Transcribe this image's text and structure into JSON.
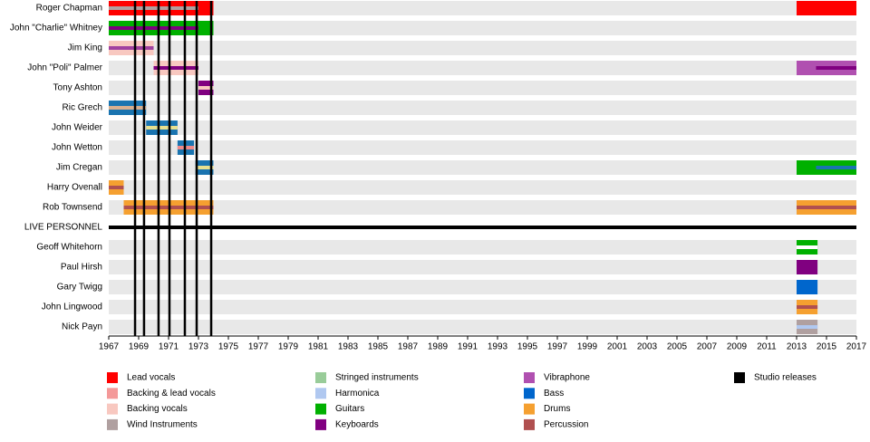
{
  "chart_data": {
    "type": "timeline",
    "xlim": [
      1967,
      2017
    ],
    "xticks": [
      1967,
      1969,
      1971,
      1973,
      1975,
      1977,
      1979,
      1981,
      1983,
      1985,
      1987,
      1989,
      1991,
      1993,
      1995,
      1997,
      1999,
      2001,
      2003,
      2005,
      2007,
      2009,
      2011,
      2013,
      2015,
      2017
    ],
    "members": [
      {
        "name": "Roger Chapman",
        "bars": [
          {
            "start": 1967,
            "end": 1974,
            "color": "#ff0000"
          },
          {
            "start": 2013,
            "end": 2017,
            "color": "#ff0000"
          }
        ],
        "stripes": [
          {
            "start": 1967,
            "end": 1973,
            "color": "#b0a0a0"
          }
        ]
      },
      {
        "name": "John \"Charlie\" Whitney",
        "bars": [
          {
            "start": 1967,
            "end": 1974,
            "color": "#00b000"
          }
        ],
        "stripes": [
          {
            "start": 1967,
            "end": 1973,
            "color": "#800080"
          }
        ]
      },
      {
        "name": "Jim King",
        "bars": [
          {
            "start": 1967,
            "end": 1970,
            "color": "#f8c8c0"
          }
        ],
        "stripes": [
          {
            "start": 1967,
            "end": 1970,
            "color": "#a040a0"
          }
        ]
      },
      {
        "name": "John \"Poli\" Palmer",
        "bars": [
          {
            "start": 1970,
            "end": 1973,
            "color": "#f8c8c0"
          },
          {
            "start": 2013,
            "end": 2017,
            "color": "#b050b0"
          }
        ],
        "stripes": [
          {
            "start": 1970,
            "end": 1973,
            "color": "#800080"
          },
          {
            "start": 2014.3,
            "end": 2017,
            "color": "#800080"
          }
        ]
      },
      {
        "name": "Tony Ashton",
        "bars": [
          {
            "start": 1973,
            "end": 1974,
            "color": "#800080"
          }
        ],
        "stripes": [
          {
            "start": 1973,
            "end": 1974,
            "color": "#f8c8c0"
          }
        ]
      },
      {
        "name": "Ric Grech",
        "bars": [
          {
            "start": 1967,
            "end": 1969.5,
            "color": "#1a74b0"
          }
        ],
        "stripes": [
          {
            "start": 1967,
            "end": 1969.5,
            "color": "#d8b090"
          }
        ]
      },
      {
        "name": "John Weider",
        "bars": [
          {
            "start": 1969.5,
            "end": 1971.6,
            "color": "#1a74b0"
          }
        ],
        "stripes": [
          {
            "start": 1969.5,
            "end": 1971.6,
            "color": "#e8e090"
          }
        ]
      },
      {
        "name": "John Wetton",
        "bars": [
          {
            "start": 1971.6,
            "end": 1972.7,
            "color": "#1a74b0"
          }
        ],
        "stripes": [
          {
            "start": 1971.6,
            "end": 1972.7,
            "color": "#f08a8a"
          }
        ]
      },
      {
        "name": "Jim Cregan",
        "bars": [
          {
            "start": 1972.8,
            "end": 1974,
            "color": "#1a74b0"
          },
          {
            "start": 2013,
            "end": 2017,
            "color": "#00b000"
          }
        ],
        "stripes": [
          {
            "start": 1972.8,
            "end": 1974,
            "color": "#e8e090"
          },
          {
            "start": 2014.3,
            "end": 2017,
            "color": "#1a74b0"
          }
        ]
      },
      {
        "name": "Harry Ovenall",
        "bars": [
          {
            "start": 1967,
            "end": 1968,
            "color": "#f5a030"
          }
        ],
        "stripes": [
          {
            "start": 1967,
            "end": 1968,
            "color": "#b05050"
          }
        ]
      },
      {
        "name": "Rob Townsend",
        "bars": [
          {
            "start": 1968,
            "end": 1974,
            "color": "#f5a030"
          },
          {
            "start": 2013,
            "end": 2017,
            "color": "#f5a030"
          }
        ],
        "stripes": [
          {
            "start": 1968,
            "end": 1974,
            "color": "#b05050"
          },
          {
            "start": 2013,
            "end": 2017,
            "color": "#b05050"
          }
        ]
      }
    ],
    "live_label": "LIVE PERSONNEL",
    "live_members": [
      {
        "name": "Geoff Whitehorn",
        "bars": [
          {
            "start": 2013,
            "end": 2014.4,
            "color": "#00b000"
          }
        ],
        "stripes": [
          {
            "start": 2013,
            "end": 2014.4,
            "color": "#ffffff"
          }
        ]
      },
      {
        "name": "Paul Hirsh",
        "bars": [
          {
            "start": 2013,
            "end": 2014.4,
            "color": "#800080"
          }
        ],
        "stripes": []
      },
      {
        "name": "Gary Twigg",
        "bars": [
          {
            "start": 2013,
            "end": 2014.4,
            "color": "#0066cc"
          }
        ],
        "stripes": []
      },
      {
        "name": "John Lingwood",
        "bars": [
          {
            "start": 2013,
            "end": 2014.4,
            "color": "#f5a030"
          }
        ],
        "stripes": [
          {
            "start": 2013,
            "end": 2014.4,
            "color": "#b05050"
          }
        ]
      },
      {
        "name": "Nick Payn",
        "bars": [
          {
            "start": 2013,
            "end": 2014.4,
            "color": "#b0a0a0"
          }
        ],
        "stripes": [
          {
            "start": 2013,
            "end": 2014.4,
            "color": "#b0c8f0"
          }
        ]
      }
    ],
    "releases": [
      1968.76,
      1969.36,
      1970.33,
      1971.06,
      1972.09,
      1972.88,
      1973.85
    ],
    "legend": [
      {
        "name": "Lead vocals",
        "color": "#ff0000"
      },
      {
        "name": "Backing & lead vocals",
        "color": "#f49999"
      },
      {
        "name": "Backing vocals",
        "color": "#f8c8c0"
      },
      {
        "name": "Wind Instruments",
        "color": "#b0a0a0"
      },
      {
        "name": "Stringed instruments",
        "color": "#99cc99"
      },
      {
        "name": "Harmonica",
        "color": "#b0c8f0"
      },
      {
        "name": "Guitars",
        "color": "#00b000"
      },
      {
        "name": "Keyboards",
        "color": "#800080"
      },
      {
        "name": "Vibraphone",
        "color": "#b050b0"
      },
      {
        "name": "Bass",
        "color": "#0066cc"
      },
      {
        "name": "Drums",
        "color": "#f5a030"
      },
      {
        "name": "Percussion",
        "color": "#b05050"
      },
      {
        "name": "Studio releases",
        "color": "#000000"
      }
    ]
  }
}
